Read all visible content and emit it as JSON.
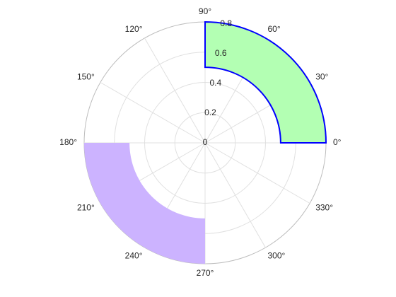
{
  "chart_data": {
    "type": "polar",
    "rlim": [
      0,
      0.8
    ],
    "rticks": [
      0,
      0.2,
      0.4,
      0.6,
      0.8
    ],
    "thetaticks": [
      {
        "value": 0,
        "label": "0°"
      },
      {
        "value": 30,
        "label": "30°"
      },
      {
        "value": 60,
        "label": "60°"
      },
      {
        "value": 90,
        "label": "90°"
      },
      {
        "value": 120,
        "label": "120°"
      },
      {
        "value": 150,
        "label": "150°"
      },
      {
        "value": 180,
        "label": "180°"
      },
      {
        "value": 210,
        "label": "210°"
      },
      {
        "value": 240,
        "label": "240°"
      },
      {
        "value": 270,
        "label": "270°"
      },
      {
        "value": 300,
        "label": "300°"
      },
      {
        "value": 330,
        "label": "330°"
      }
    ],
    "grid": true,
    "series": [
      {
        "theta": [
          0,
          90
        ],
        "r": [
          0.5,
          0.8
        ],
        "color": "#b3ffb3",
        "edgecolor": "#0000ff"
      },
      {
        "theta": [
          180,
          270
        ],
        "r": [
          0.5,
          0.8
        ],
        "color": "#ccb3ff",
        "edgecolor": null
      }
    ]
  }
}
